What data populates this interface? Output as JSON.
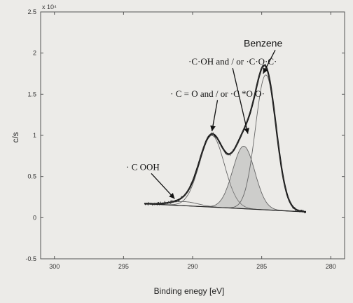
{
  "chart_data": {
    "type": "line",
    "xlabel": "Binding enegy [eV]",
    "ylabel": "c/s",
    "y_multiplier_label": "x 10⁴",
    "xlim": [
      301,
      279
    ],
    "ylim": [
      -0.5,
      2.5
    ],
    "x_ticks": [
      300,
      295,
      290,
      285,
      280
    ],
    "y_ticks": [
      2.5,
      2,
      1.5,
      1,
      0.5,
      0,
      -0.5
    ],
    "x_tick_labels": [
      "300",
      "295",
      "290",
      "285",
      "280"
    ],
    "y_tick_labels": [
      "2.5",
      "2",
      "1.5",
      "1",
      "0.5",
      "0",
      "-0.5"
    ],
    "x_reversed": true,
    "grid": false,
    "baseline": {
      "x_start": 293.5,
      "x_end": 281.8,
      "y_start": 0.17,
      "y_end": 0.07
    },
    "series": [
      {
        "component": "C=O and/or C*OO",
        "center": 288.6,
        "height": 0.87,
        "width": 0.9
      },
      {
        "component": "C-OH and/or C-O-C",
        "center": 286.3,
        "height": 0.76,
        "width": 0.8
      },
      {
        "component": "Benzene",
        "center": 284.7,
        "height": 1.64,
        "width": 0.75
      },
      {
        "component": "COOH",
        "center": 290.6,
        "height": 0.05,
        "width": 1.0
      }
    ],
    "annotations": [
      {
        "text": "Benzene",
        "label_x": 286.3,
        "label_y": 2.08,
        "arrow_to": [
          284.9,
          1.75
        ]
      },
      {
        "text": "·C·OH and / or ·C·O·C·",
        "label_x": 287.1,
        "label_y": 1.86,
        "arrow_to": [
          286.0,
          1.02
        ]
      },
      {
        "text": "· C = O and / or ·C *O O·",
        "label_x": 288.2,
        "label_y": 1.47,
        "arrow_to": [
          288.6,
          1.05
        ]
      },
      {
        "text": "· C OOH",
        "label_x": 293.6,
        "label_y": 0.58,
        "arrow_to": [
          291.3,
          0.23
        ]
      }
    ]
  }
}
